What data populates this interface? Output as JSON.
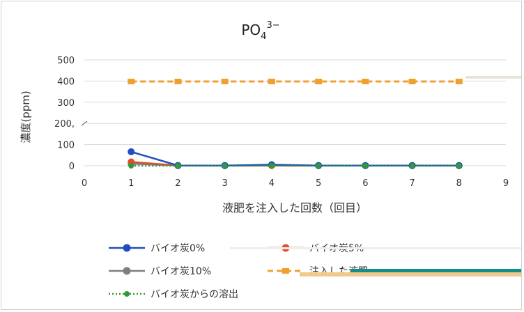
{
  "chart_data": {
    "type": "line",
    "title_main": "PO",
    "title_sub": "4",
    "title_sup": "3−",
    "xlabel": "液肥を注入した回数（回目）",
    "ylabel": "濃度(ppm)",
    "xlim": [
      0,
      9
    ],
    "ylim": [
      0,
      500
    ],
    "x_ticks": [
      "0",
      "1",
      "2",
      "3",
      "4",
      "5",
      "6",
      "7",
      "8",
      "9"
    ],
    "y_ticks": [
      "0",
      "100",
      "200",
      "300",
      "400",
      "500"
    ],
    "y_break_label": "200,",
    "grid": true,
    "legend_position": "bottom",
    "series": [
      {
        "name": "バイオ炭0%",
        "color": "#1f4fbf",
        "dash": "solid",
        "marker": "circle",
        "x": [
          1,
          2,
          3,
          4,
          5,
          6,
          7,
          8
        ],
        "values": [
          66,
          1,
          1,
          5,
          1,
          1,
          1,
          1
        ]
      },
      {
        "name": "バイオ炭5%",
        "color": "#e0502a",
        "dash": "solid",
        "marker": "circle",
        "x": [
          1,
          2,
          3,
          4,
          5,
          6,
          7,
          8
        ],
        "values": [
          18,
          1,
          1,
          1,
          1,
          1,
          1,
          1
        ]
      },
      {
        "name": "バイオ炭10%",
        "color": "#7f7f7f",
        "dash": "solid",
        "marker": "circle",
        "x": [
          1,
          2,
          3,
          4,
          5,
          6,
          7,
          8
        ],
        "values": [
          10,
          1,
          1,
          2,
          1,
          1,
          1,
          1
        ]
      },
      {
        "name": "注入した液肥",
        "color": "#f0a030",
        "dash": "dashed",
        "marker": "square",
        "x": [
          1,
          2,
          3,
          4,
          5,
          6,
          7,
          8
        ],
        "values": [
          398,
          398,
          398,
          398,
          398,
          398,
          398,
          398
        ]
      },
      {
        "name": "バイオ炭からの溶出",
        "color": "#2e9a3a",
        "dash": "dotted",
        "marker": "circle",
        "x": [
          1,
          2,
          3,
          4,
          5,
          6,
          7,
          8
        ],
        "values": [
          0,
          0,
          0,
          0,
          0,
          0,
          0,
          0
        ]
      }
    ]
  }
}
